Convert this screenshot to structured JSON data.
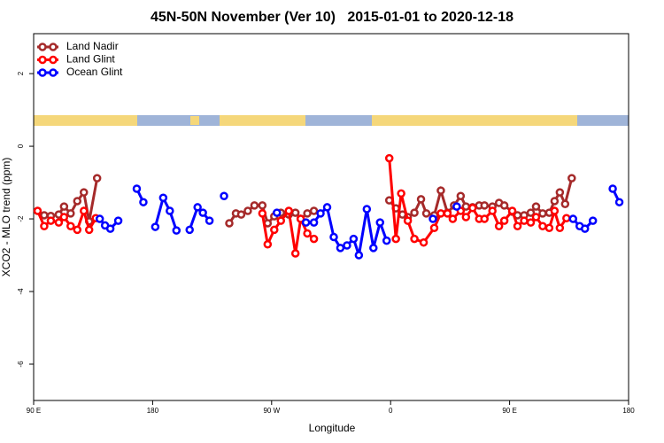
{
  "chart_data": {
    "type": "line",
    "title": "45N-50N November (Ver 10)   2015-01-01 to 2020-12-18",
    "x_label": "Longitude",
    "y_label": "XCO2 - MLO trend (ppm)",
    "xlim": [
      90,
      540
    ],
    "xticks": [
      {
        "value": 90,
        "label": "90 E"
      },
      180,
      {
        "value": 270,
        "label": "90 W"
      },
      {
        "value": 360,
        "label": "0"
      },
      {
        "value": 450,
        "label": "90 E"
      },
      {
        "value": 540,
        "label": "180"
      }
    ],
    "ylim": [
      -7,
      3.1
    ],
    "yticks": [
      -6,
      -4,
      -2,
      0,
      2
    ],
    "legend": "top-left",
    "series": [
      {
        "name": "Land Nadir",
        "color": "#a52a2a",
        "x": [
          98,
          103,
          109,
          113,
          118,
          123,
          128,
          132,
          138,
          null,
          238,
          243,
          247,
          252,
          257,
          263,
          267,
          272,
          277,
          283,
          288,
          292,
          297,
          302,
          null,
          359,
          364,
          369,
          373,
          378,
          383,
          387,
          393,
          398,
          403,
          408,
          413,
          417,
          422,
          427,
          431,
          437,
          442,
          446,
          452,
          456,
          461,
          466,
          470,
          475,
          480,
          484,
          488,
          492,
          497
        ],
        "values": [
          -1.9,
          -1.92,
          -1.88,
          -1.66,
          -1.85,
          -1.51,
          -1.27,
          -2.07,
          -0.88,
          null,
          -2.12,
          -1.85,
          -1.88,
          -1.78,
          -1.63,
          -1.63,
          -2.12,
          -1.93,
          -1.83,
          -1.88,
          -1.83,
          -2.0,
          -1.85,
          -1.78,
          null,
          -1.49,
          -1.71,
          -1.88,
          -1.95,
          -1.83,
          -1.46,
          -1.85,
          -1.9,
          -1.22,
          -1.83,
          -1.63,
          -1.37,
          -1.66,
          -1.68,
          -1.63,
          -1.63,
          -1.66,
          -1.56,
          -1.63,
          -1.8,
          -1.9,
          -1.9,
          -1.83,
          -1.66,
          -1.85,
          -1.83,
          -1.51,
          -1.27,
          -1.59,
          -0.88
        ]
      },
      {
        "name": "Land Glint",
        "color": "#ff0000",
        "x": [
          93,
          98,
          103,
          109,
          113,
          118,
          123,
          128,
          132,
          137,
          null,
          263,
          267,
          272,
          277,
          283,
          288,
          292,
          297,
          302,
          null,
          359,
          364,
          368,
          373,
          378,
          385,
          393,
          398,
          403,
          407,
          413,
          417,
          422,
          427,
          431,
          437,
          442,
          446,
          452,
          456,
          461,
          466,
          470,
          475,
          480,
          484,
          488,
          493
        ],
        "values": [
          -1.78,
          -2.2,
          -2.05,
          -2.1,
          -1.95,
          -2.2,
          -2.3,
          -1.78,
          -2.3,
          -1.98,
          null,
          -1.85,
          -2.7,
          -2.3,
          -2.05,
          -1.78,
          -2.95,
          -2.0,
          -2.4,
          -2.55,
          null,
          -0.33,
          -2.55,
          -1.3,
          -2.05,
          -2.55,
          -2.65,
          -2.25,
          -1.85,
          -1.85,
          -2.0,
          -1.78,
          -1.95,
          -1.7,
          -2.0,
          -2.0,
          -1.78,
          -2.2,
          -2.05,
          -1.78,
          -2.2,
          -2.05,
          -2.1,
          -1.95,
          -2.2,
          -2.25,
          -1.78,
          -2.25,
          -1.98
        ]
      },
      {
        "name": "Ocean Glint",
        "color": "#0000ff",
        "x": [
          140,
          144,
          148,
          154,
          null,
          168,
          173,
          null,
          182,
          188,
          193,
          198,
          null,
          208,
          214,
          218,
          223,
          null,
          234,
          null,
          274,
          null,
          296,
          302,
          307,
          312,
          317,
          322,
          327,
          332,
          336,
          342,
          347,
          352,
          357,
          null,
          392,
          null,
          410,
          null,
          498,
          503,
          507,
          513,
          null,
          528,
          533
        ],
        "values": [
          -2.0,
          -2.18,
          -2.27,
          -2.05,
          null,
          -1.17,
          -1.54,
          null,
          -2.22,
          -1.42,
          -1.78,
          -2.32,
          null,
          -2.3,
          -1.68,
          -1.83,
          -2.05,
          null,
          -1.37,
          null,
          -1.83,
          null,
          -2.1,
          -2.1,
          -1.85,
          -1.68,
          -2.5,
          -2.8,
          -2.73,
          -2.55,
          -3.0,
          -1.73,
          -2.8,
          -2.1,
          -2.6,
          null,
          -2.0,
          null,
          -1.66,
          null,
          -2.0,
          -2.2,
          -2.27,
          -2.05,
          null,
          -1.17,
          -1.54
        ]
      }
    ]
  }
}
